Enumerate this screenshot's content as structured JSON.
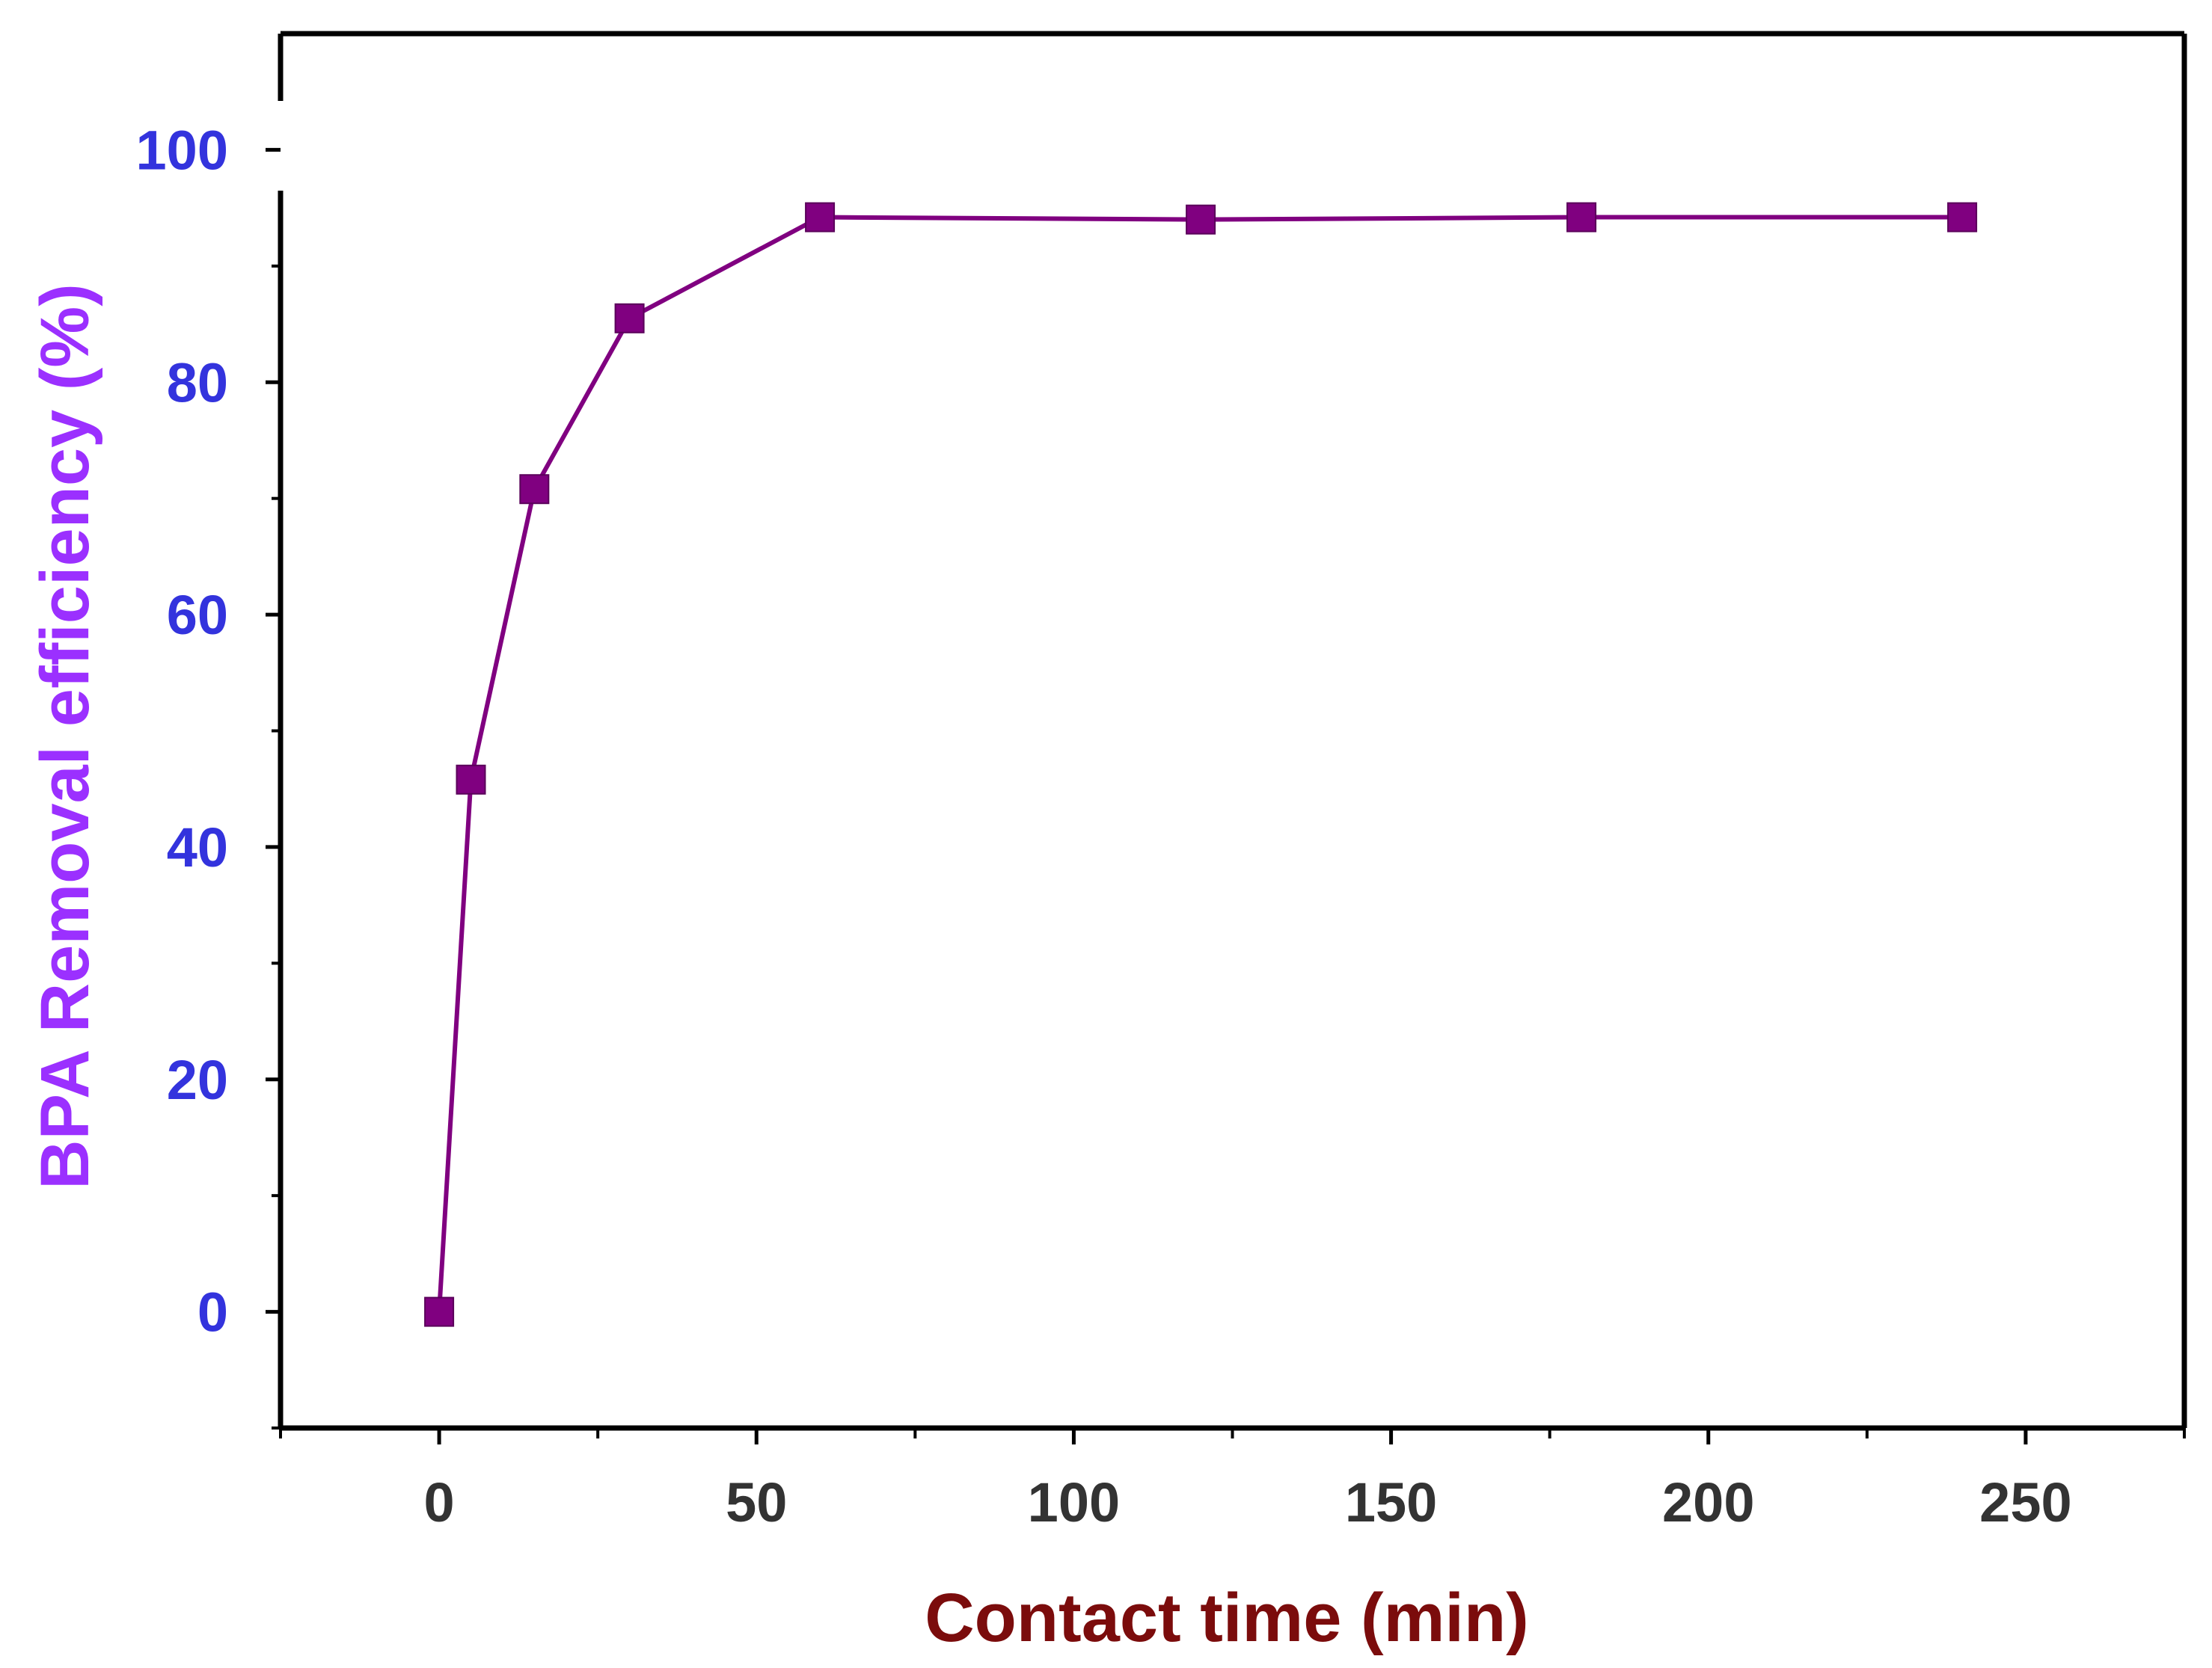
{
  "chart_data": {
    "type": "line",
    "title": "",
    "xlabel": "Contact time (min)",
    "ylabel": "BPA Removal efficiency (%)",
    "xlim": [
      -25,
      275
    ],
    "ylim": [
      -10,
      110
    ],
    "xticks": [
      0,
      50,
      100,
      150,
      200,
      250
    ],
    "yticks": [
      0,
      20,
      40,
      60,
      80,
      100
    ],
    "grid": false,
    "series": [
      {
        "x": [
          0,
          5,
          15,
          30,
          60,
          120,
          180,
          240
        ],
        "values": [
          0,
          45.8,
          70.8,
          85.5,
          94.2,
          94.0,
          94.2,
          94.2
        ]
      }
    ]
  },
  "colors": {
    "series": "#800080",
    "ytick_labels": "#3333dd",
    "ylabel": "#9b30ff",
    "xlabel": "#7b0c0c",
    "xtick_labels": "#333333",
    "axes": "#000000"
  }
}
